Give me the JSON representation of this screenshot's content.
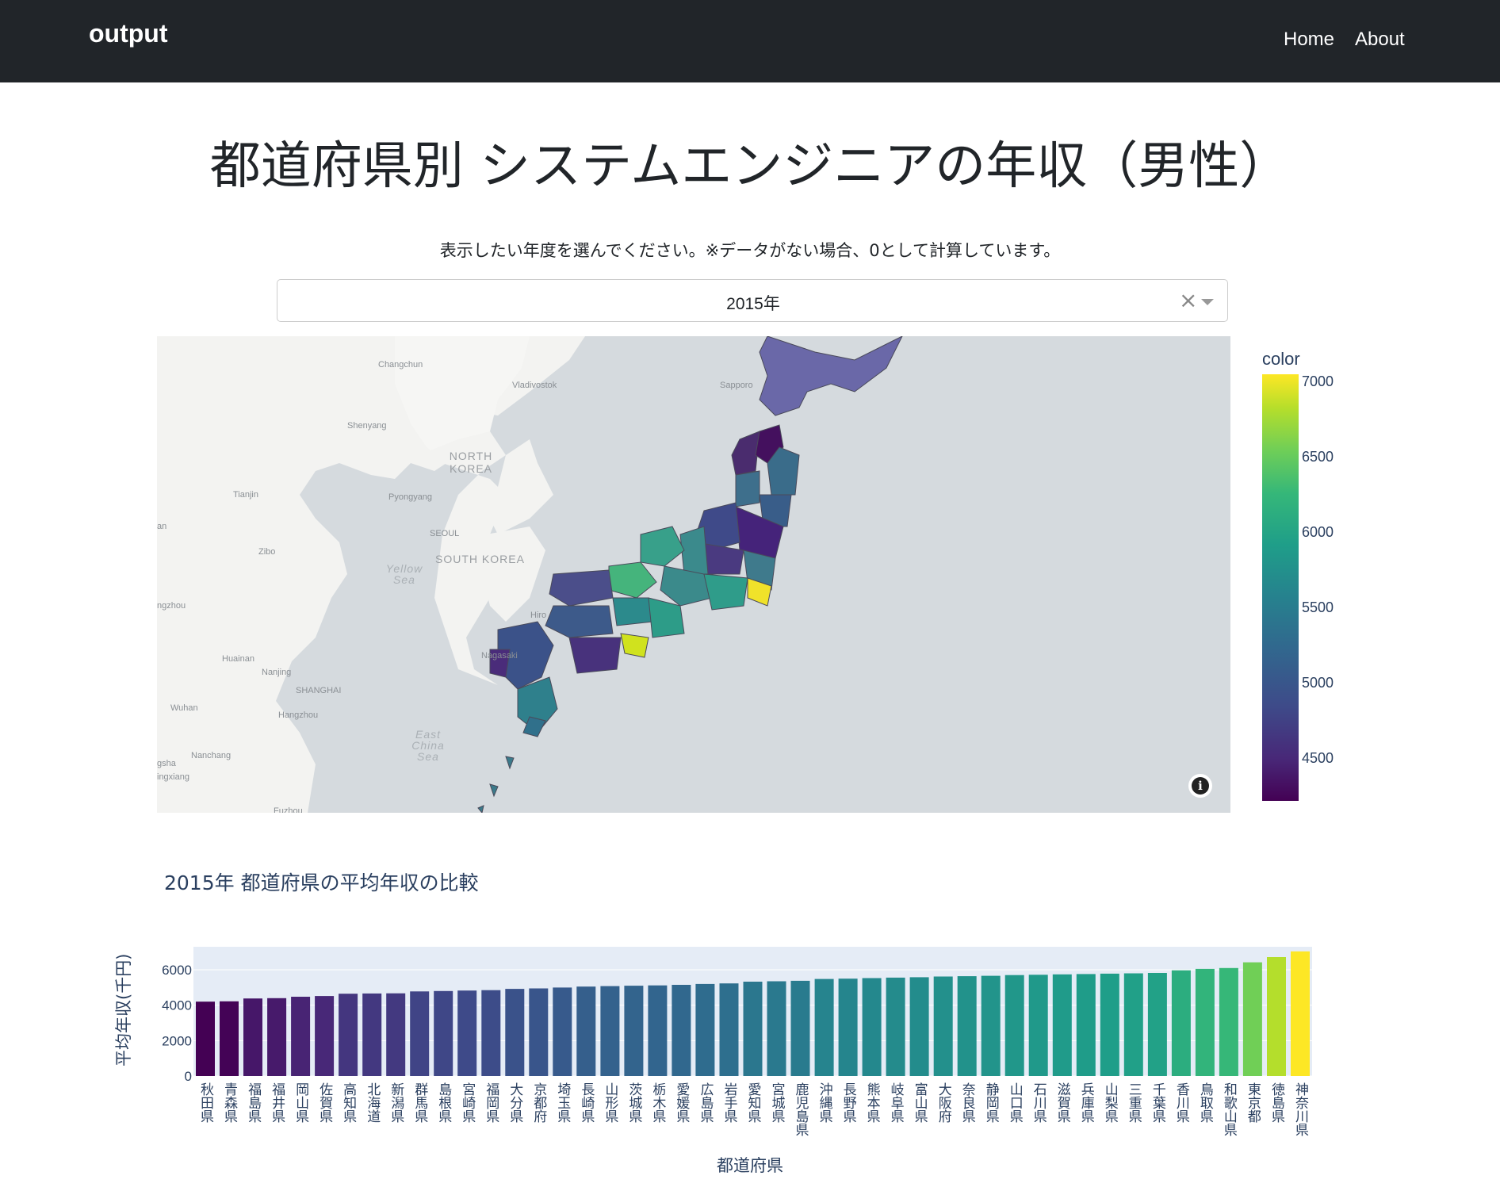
{
  "nav": {
    "brand": "output",
    "links": [
      "Home",
      "About"
    ]
  },
  "page": {
    "title": "都道府県別 システムエンジニアの年収（男性）",
    "instruction": "表示したい年度を選んでください。※データがない場合、0として計算しています。"
  },
  "year_select": {
    "value": "2015年",
    "clear_icon": "×"
  },
  "map": {
    "labels": {
      "changchun": "Changchun",
      "vladivostok": "Vladivostok",
      "shenyang": "Shenyang",
      "north_korea": "NORTH KOREA",
      "tianjin": "Tianjin",
      "pyongyang": "Pyongyang",
      "seoul": "SEOUL",
      "south_korea": "SOUTH KOREA",
      "zibo": "Zibo",
      "yellow_sea": "Yellow Sea",
      "huainan": "Huainan",
      "nanjing": "Nanjing",
      "shanghai": "SHANGHAI",
      "wuhan": "Wuhan",
      "hangzhou": "Hangzhou",
      "nanchang": "Nanchang",
      "east_china_sea": "East China Sea",
      "sapporo": "Sapporo",
      "hiroshima": "Hiro",
      "nagasaki": "Nagasaki",
      "edge_1": "an",
      "edge_2": "ngzhou",
      "edge_3": "gsha",
      "edge_4": "ingxiang",
      "edge_5": "Fuzhou"
    },
    "info_icon": "i",
    "colorbar": {
      "title": "color",
      "ticks": [
        "7000",
        "6500",
        "6000",
        "5500",
        "5000",
        "4500"
      ],
      "min": 4200,
      "max": 7050
    }
  },
  "bar_chart_title": "2015年 都道府県の平均年収の比較",
  "chart_data": {
    "type": "bar",
    "title": "2015年 都道府県の平均年収の比較",
    "xlabel": "都道府県",
    "ylabel": "平均年収(千円)",
    "ylim": [
      0,
      7300
    ],
    "yticks": [
      "0",
      "2000",
      "4000",
      "6000"
    ],
    "grid": true,
    "colorscale": "viridis",
    "categories": [
      "秋田県",
      "青森県",
      "福島県",
      "福井県",
      "岡山県",
      "佐賀県",
      "高知県",
      "北海道",
      "新潟県",
      "群馬県",
      "島根県",
      "宮崎県",
      "福岡県",
      "大分県",
      "京都府",
      "埼玉県",
      "長崎県",
      "山形県",
      "茨城県",
      "栃木県",
      "愛媛県",
      "広島県",
      "岩手県",
      "愛知県",
      "宮城県",
      "鹿児島県",
      "沖縄県",
      "長野県",
      "熊本県",
      "岐阜県",
      "富山県",
      "大阪府",
      "奈良県",
      "静岡県",
      "山口県",
      "石川県",
      "滋賀県",
      "兵庫県",
      "山梨県",
      "三重県",
      "千葉県",
      "香川県",
      "鳥取県",
      "和歌山県",
      "東京都",
      "徳島県",
      "神奈川県"
    ],
    "values": [
      4200,
      4220,
      4380,
      4400,
      4480,
      4520,
      4650,
      4660,
      4670,
      4780,
      4800,
      4830,
      4850,
      4920,
      4950,
      5000,
      5050,
      5080,
      5100,
      5120,
      5150,
      5200,
      5230,
      5330,
      5350,
      5380,
      5480,
      5500,
      5530,
      5560,
      5580,
      5620,
      5640,
      5660,
      5700,
      5720,
      5740,
      5760,
      5780,
      5800,
      5820,
      5970,
      6050,
      6100,
      6420,
      6720,
      7040
    ]
  }
}
